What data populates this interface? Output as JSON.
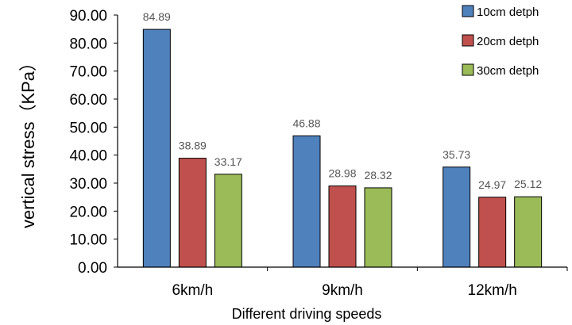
{
  "chart_data": {
    "type": "bar",
    "categories": [
      "6km/h",
      "9km/h",
      "12km/h"
    ],
    "series": [
      {
        "name": "10cm detph",
        "color": "#4f81bd",
        "values": [
          84.89,
          46.88,
          35.73
        ],
        "labels": [
          "84.89",
          "46.88",
          "35.73"
        ]
      },
      {
        "name": "20cm detph",
        "color": "#c0504d",
        "values": [
          38.89,
          28.98,
          24.97
        ],
        "labels": [
          "38.89",
          "28.98",
          "24.97"
        ]
      },
      {
        "name": "30cm detph",
        "color": "#9bbb59",
        "values": [
          33.17,
          28.32,
          25.12
        ],
        "labels": [
          "33.17",
          "28.32",
          "25.12"
        ]
      }
    ],
    "xlabel": "Different driving speeds",
    "ylabel": "vertical stress（KPa）",
    "ylim": [
      0,
      90
    ],
    "yticks": [
      "0.00",
      "10.00",
      "20.00",
      "30.00",
      "40.00",
      "50.00",
      "60.00",
      "70.00",
      "80.00",
      "90.00"
    ],
    "grid": false,
    "legend_position": "top-right"
  }
}
